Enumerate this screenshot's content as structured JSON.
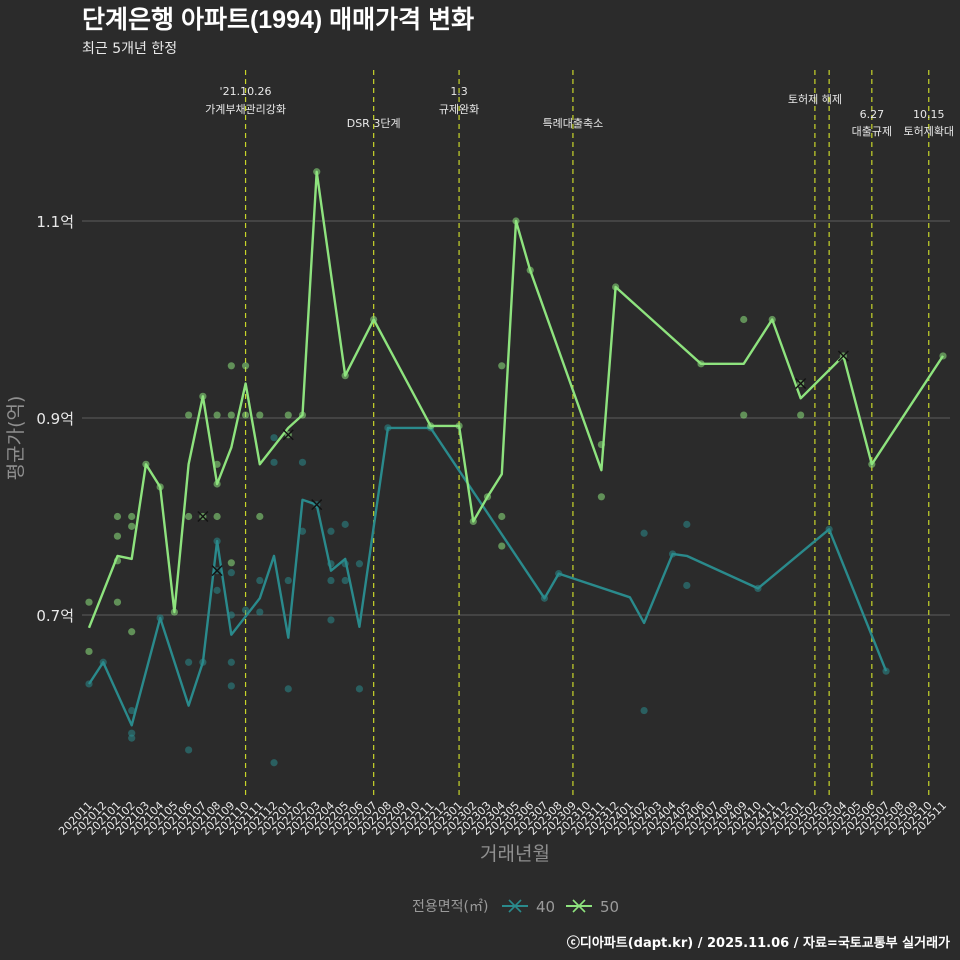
{
  "title": "단계은행 아파트(1994) 매매가격 변화",
  "subtitle": "최근 5개년 한정",
  "footer": "ⓒ디아파트(dapt.kr) / 2025.11.06 / 자료=국토교통부 실거래가",
  "colors": {
    "background": "#2b2b2b",
    "grid": "#5c5c5c",
    "series40": "#2a8a8c",
    "series50": "#8ee37e",
    "vline": "#c8d62a",
    "text": "#e8e8e8",
    "axisText": "#9a9a9a"
  },
  "chart_data": {
    "type": "line",
    "title": "단계은행 아파트(1994) 매매가격 변화",
    "xlabel": "거래년월",
    "ylabel": "평균가(억)",
    "ylim": [
      0.52,
      1.27
    ],
    "yticks": [
      0.7,
      0.9,
      1.1
    ],
    "ytick_labels": [
      "0.7억",
      "0.9억",
      "1.1억"
    ],
    "legend_title": "전용면적(㎡)",
    "categories": [
      "202011",
      "202012",
      "202101",
      "202102",
      "202103",
      "202104",
      "202105",
      "202106",
      "202107",
      "202108",
      "202109",
      "202110",
      "202111",
      "202112",
      "202201",
      "202202",
      "202203",
      "202204",
      "202205",
      "202206",
      "202207",
      "202208",
      "202209",
      "202210",
      "202211",
      "202212",
      "202301",
      "202302",
      "202303",
      "202304",
      "202305",
      "202306",
      "202307",
      "202308",
      "202309",
      "202310",
      "202311",
      "202312",
      "202401",
      "202402",
      "202403",
      "202404",
      "202405",
      "202406",
      "202407",
      "202408",
      "202409",
      "202410",
      "202411",
      "202412",
      "202501",
      "202502",
      "202503",
      "202504",
      "202505",
      "202506",
      "202507",
      "202508",
      "202509",
      "202510",
      "202511"
    ],
    "events": [
      {
        "x": 11.0,
        "lines": [
          "'21.10.26",
          "가계부채관리강화"
        ],
        "level": 0
      },
      {
        "x": 20.0,
        "lines": [
          "DSR 3단계"
        ],
        "level": 1
      },
      {
        "x": 26.0,
        "lines": [
          "1.3",
          "규제완화"
        ],
        "level": 0
      },
      {
        "x": 34.0,
        "lines": [
          "특례대출축소"
        ],
        "level": 1
      },
      {
        "x": 51.0,
        "lines": [
          "토허제 해제"
        ],
        "level": 0
      },
      {
        "x": 52.0,
        "lines": [],
        "level": 0
      },
      {
        "x": 55.0,
        "lines": [
          "6.27",
          "대출규제"
        ],
        "level": 1
      },
      {
        "x": 59.0,
        "lines": [
          "10.15",
          "토허제확대"
        ],
        "level": 1
      }
    ],
    "series": [
      {
        "name": "40",
        "line": [
          [
            0,
            0.63
          ],
          [
            1,
            0.652
          ],
          [
            3,
            0.588
          ],
          [
            5,
            0.697
          ],
          [
            7,
            0.608
          ],
          [
            8,
            0.652
          ],
          [
            9,
            0.775
          ],
          [
            10,
            0.68
          ],
          [
            12,
            0.717
          ],
          [
            13,
            0.76
          ],
          [
            14,
            0.677
          ],
          [
            15,
            0.817
          ],
          [
            16,
            0.812
          ],
          [
            17,
            0.745
          ],
          [
            18,
            0.757
          ],
          [
            19,
            0.688
          ],
          [
            21,
            0.89
          ],
          [
            24,
            0.89
          ],
          [
            32,
            0.717
          ],
          [
            33,
            0.742
          ],
          [
            38,
            0.718
          ],
          [
            39,
            0.692
          ],
          [
            41,
            0.762
          ],
          [
            42,
            0.76
          ],
          [
            47,
            0.727
          ],
          [
            52,
            0.787
          ],
          [
            56,
            0.643
          ]
        ],
        "points": [
          [
            0,
            0.63
          ],
          [
            1,
            0.652
          ],
          [
            3,
            0.575
          ],
          [
            3,
            0.58
          ],
          [
            3,
            0.603
          ],
          [
            5,
            0.697
          ],
          [
            7,
            0.563
          ],
          [
            7,
            0.652
          ],
          [
            8,
            0.652
          ],
          [
            9,
            0.725
          ],
          [
            9,
            0.745
          ],
          [
            9,
            0.775
          ],
          [
            10,
            0.628
          ],
          [
            10,
            0.652
          ],
          [
            10,
            0.7
          ],
          [
            10,
            0.743
          ],
          [
            11,
            0.705
          ],
          [
            12,
            0.735
          ],
          [
            12,
            0.703
          ],
          [
            13,
            0.55
          ],
          [
            13,
            0.855
          ],
          [
            13,
            0.88
          ],
          [
            14,
            0.625
          ],
          [
            14,
            0.735
          ],
          [
            15,
            0.855
          ],
          [
            15,
            0.785
          ],
          [
            16,
            0.812
          ],
          [
            17,
            0.695
          ],
          [
            17,
            0.735
          ],
          [
            17,
            0.752
          ],
          [
            17,
            0.785
          ],
          [
            18,
            0.735
          ],
          [
            18,
            0.752
          ],
          [
            18,
            0.792
          ],
          [
            19,
            0.625
          ],
          [
            19,
            0.752
          ],
          [
            21,
            0.89
          ],
          [
            24,
            0.89
          ],
          [
            32,
            0.717
          ],
          [
            33,
            0.742
          ],
          [
            39,
            0.603
          ],
          [
            39,
            0.783
          ],
          [
            41,
            0.762
          ],
          [
            42,
            0.73
          ],
          [
            42,
            0.792
          ],
          [
            47,
            0.727
          ],
          [
            52,
            0.787
          ],
          [
            56,
            0.643
          ]
        ],
        "crosses": [
          [
            9,
            0.745
          ],
          [
            16,
            0.812
          ]
        ]
      },
      {
        "name": "50",
        "line": [
          [
            0,
            0.687
          ],
          [
            2,
            0.76
          ],
          [
            3,
            0.757
          ],
          [
            4,
            0.853
          ],
          [
            5,
            0.83
          ],
          [
            6,
            0.703
          ],
          [
            7,
            0.853
          ],
          [
            8,
            0.922
          ],
          [
            9,
            0.833
          ],
          [
            10,
            0.87
          ],
          [
            11,
            0.935
          ],
          [
            12,
            0.853
          ],
          [
            14,
            0.89
          ],
          [
            15,
            0.903
          ],
          [
            16,
            1.15
          ],
          [
            18,
            0.943
          ],
          [
            20,
            1.0
          ],
          [
            24,
            0.892
          ],
          [
            26,
            0.892
          ],
          [
            27,
            0.795
          ],
          [
            28,
            0.82
          ],
          [
            29,
            0.843
          ],
          [
            30,
            1.1
          ],
          [
            31,
            1.05
          ],
          [
            36,
            0.847
          ],
          [
            37,
            1.033
          ],
          [
            43,
            0.955
          ],
          [
            46,
            0.955
          ],
          [
            48,
            1.0
          ],
          [
            50,
            0.92
          ],
          [
            53,
            0.963
          ],
          [
            55,
            0.853
          ],
          [
            60,
            0.963
          ]
        ],
        "points": [
          [
            0,
            0.713
          ],
          [
            0,
            0.663
          ],
          [
            2,
            0.78
          ],
          [
            2,
            0.8
          ],
          [
            2,
            0.755
          ],
          [
            2,
            0.713
          ],
          [
            3,
            0.8
          ],
          [
            3,
            0.79
          ],
          [
            3,
            0.683
          ],
          [
            4,
            0.853
          ],
          [
            5,
            0.83
          ],
          [
            6,
            0.703
          ],
          [
            7,
            0.903
          ],
          [
            7,
            0.8
          ],
          [
            8,
            0.922
          ],
          [
            8,
            0.8
          ],
          [
            9,
            0.853
          ],
          [
            9,
            0.833
          ],
          [
            9,
            0.903
          ],
          [
            9,
            0.8
          ],
          [
            10,
            0.953
          ],
          [
            10,
            0.903
          ],
          [
            10,
            0.753
          ],
          [
            11,
            0.953
          ],
          [
            11,
            0.903
          ],
          [
            12,
            0.903
          ],
          [
            12,
            0.8
          ],
          [
            14,
            0.903
          ],
          [
            14,
            0.883
          ],
          [
            15,
            0.903
          ],
          [
            16,
            1.15
          ],
          [
            18,
            0.943
          ],
          [
            20,
            1.0
          ],
          [
            24,
            0.892
          ],
          [
            26,
            0.892
          ],
          [
            27,
            0.795
          ],
          [
            28,
            0.82
          ],
          [
            29,
            0.953
          ],
          [
            29,
            0.8
          ],
          [
            29,
            0.77
          ],
          [
            30,
            1.1
          ],
          [
            31,
            1.05
          ],
          [
            36,
            0.873
          ],
          [
            36,
            0.82
          ],
          [
            37,
            1.033
          ],
          [
            43,
            0.955
          ],
          [
            46,
            1.0
          ],
          [
            46,
            0.903
          ],
          [
            48,
            1.0
          ],
          [
            50,
            0.903
          ],
          [
            50,
            0.935
          ],
          [
            53,
            0.963
          ],
          [
            55,
            0.853
          ],
          [
            60,
            0.963
          ]
        ],
        "crosses": [
          [
            8,
            0.8
          ],
          [
            14,
            0.883
          ],
          [
            50,
            0.935
          ],
          [
            53,
            0.963
          ]
        ]
      }
    ]
  }
}
